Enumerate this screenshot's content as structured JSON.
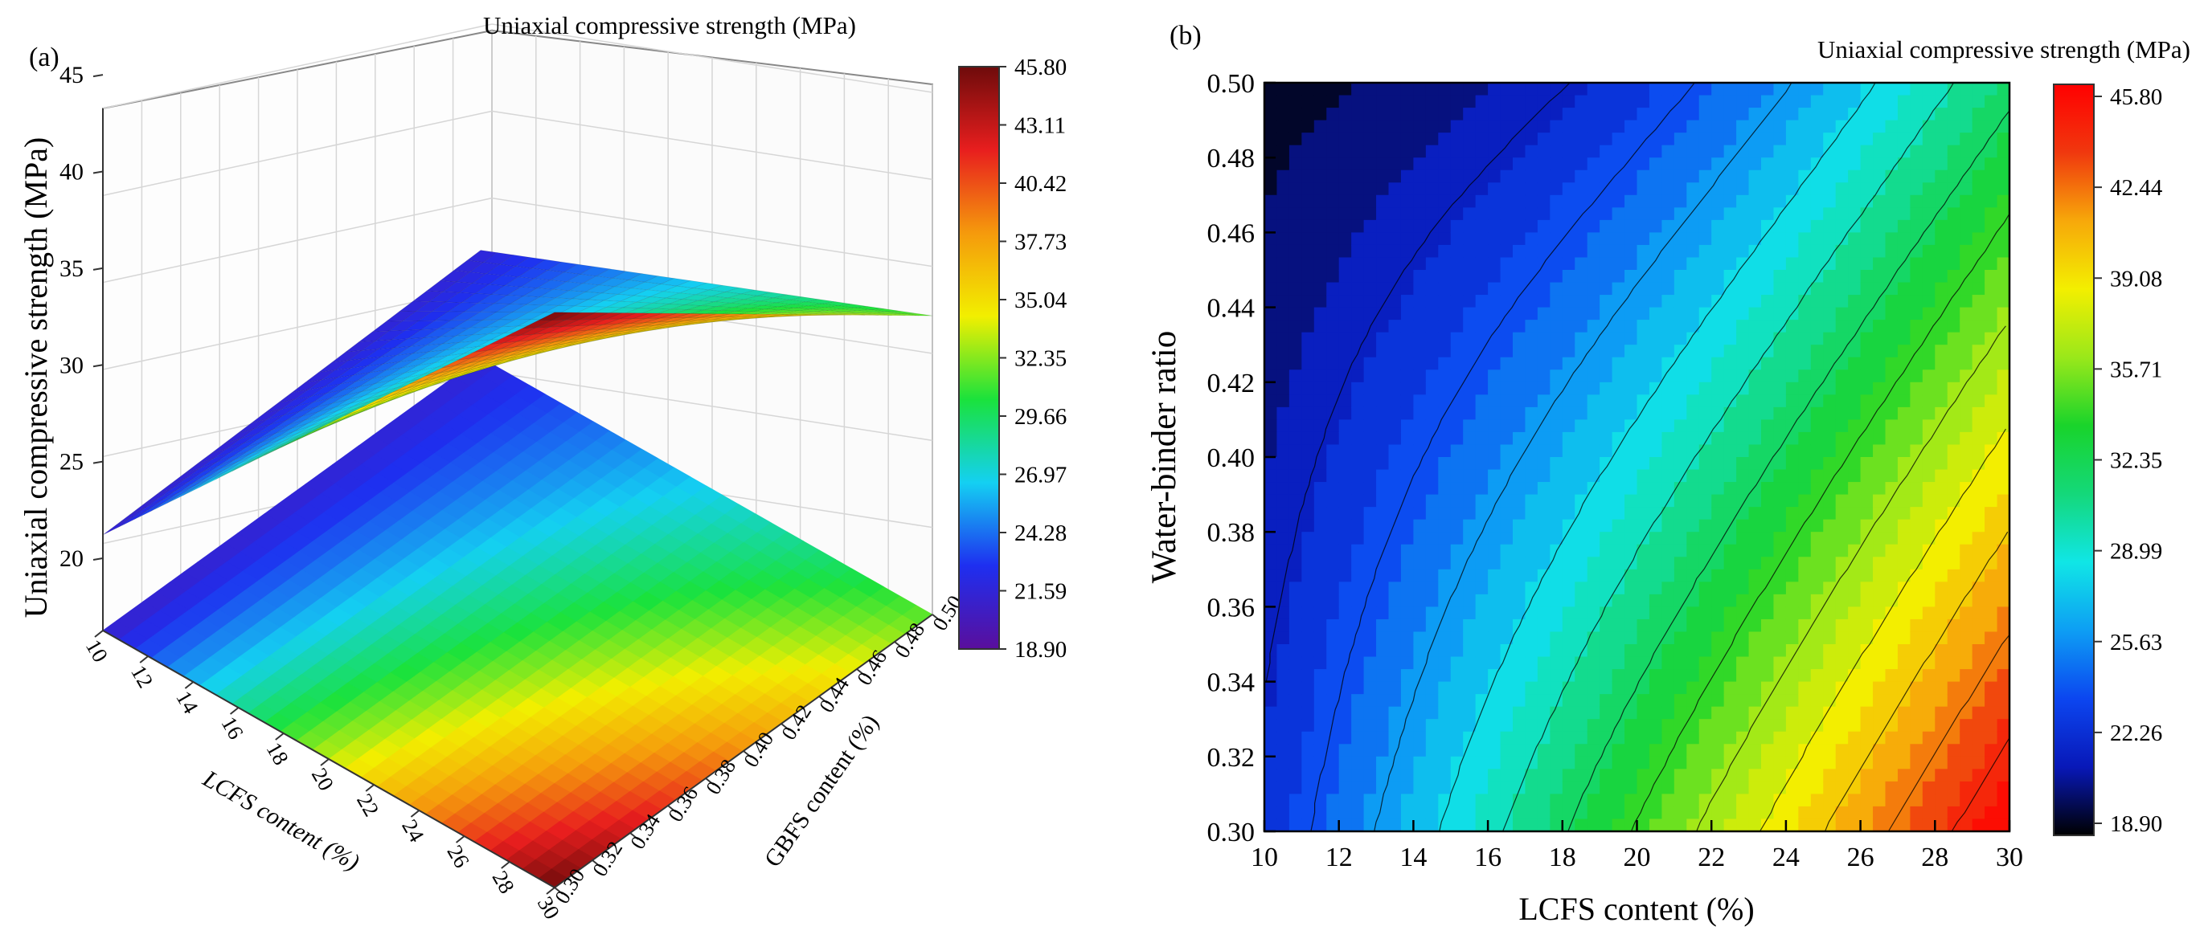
{
  "chart_data": [
    {
      "panel_label": "(a)",
      "type": "surface3d",
      "title": "",
      "colorbar_title": "Uniaxial compressive strength (MPa)",
      "colorbar_ticks": [
        "45.80",
        "43.11",
        "40.42",
        "37.73",
        "35.04",
        "32.35",
        "29.66",
        "26.97",
        "24.28",
        "21.59",
        "18.90"
      ],
      "zlabel": "Uniaxial compressive strength (MPa)",
      "z_ticks": [
        "45",
        "40",
        "35",
        "30",
        "25",
        "20"
      ],
      "zlim": [
        18.9,
        45.8
      ],
      "xlabel": "LCFS content (%)",
      "x_ticks": [
        "10",
        "12",
        "14",
        "16",
        "18",
        "20",
        "22",
        "24",
        "26",
        "28",
        "30"
      ],
      "ylabel": "GBFS content (%)",
      "y_ticks": [
        "0.30",
        "0.32",
        "0.34",
        "0.36",
        "0.38",
        "0.40",
        "0.42",
        "0.44",
        "0.46",
        "0.48",
        "0.50"
      ],
      "corner_values": [
        {
          "lcfs": 10,
          "ratio": 0.5,
          "strength": 21.6
        },
        {
          "lcfs": 10,
          "ratio": 0.3,
          "strength": 21.0
        },
        {
          "lcfs": 30,
          "ratio": 0.5,
          "strength": 31.5
        },
        {
          "lcfs": 30,
          "ratio": 0.3,
          "strength": 45.8
        }
      ],
      "colormap": [
        "#5a0e9c",
        "#1e2ff0",
        "#14d0f2",
        "#1ae23c",
        "#f2ef00",
        "#f59a0c",
        "#e81e1e",
        "#6e0b0b"
      ]
    },
    {
      "panel_label": "(b)",
      "type": "contour",
      "title": "",
      "colorbar_title": "Uniaxial compressive strength (MPa)",
      "colorbar_ticks": [
        "45.80",
        "42.44",
        "39.08",
        "35.71",
        "32.35",
        "28.99",
        "25.63",
        "22.26",
        "18.90"
      ],
      "xlabel": "LCFS content (%)",
      "ylabel": "Water-binder ratio",
      "x_ticks": [
        "10",
        "12",
        "14",
        "16",
        "18",
        "20",
        "22",
        "24",
        "26",
        "28",
        "30"
      ],
      "y_ticks": [
        "0.50",
        "0.48",
        "0.46",
        "0.44",
        "0.42",
        "0.40",
        "0.38",
        "0.36",
        "0.34",
        "0.32",
        "0.30"
      ],
      "xlim": [
        10,
        30
      ],
      "ylim": [
        0.3,
        0.5
      ],
      "zlim": [
        18.9,
        45.8
      ],
      "corner_values": [
        {
          "lcfs": 10,
          "ratio": 0.5,
          "strength": 19.5
        },
        {
          "lcfs": 10,
          "ratio": 0.3,
          "strength": 22.6
        },
        {
          "lcfs": 30,
          "ratio": 0.5,
          "strength": 31.5
        },
        {
          "lcfs": 30,
          "ratio": 0.3,
          "strength": 45.8
        }
      ],
      "colormap": [
        "#000000",
        "#0818b8",
        "#0c46f0",
        "#0d9ef4",
        "#10e6e6",
        "#14d87a",
        "#19d42b",
        "#9ae81a",
        "#f3ef00",
        "#f7a80a",
        "#f0380e",
        "#ff0000"
      ]
    }
  ]
}
